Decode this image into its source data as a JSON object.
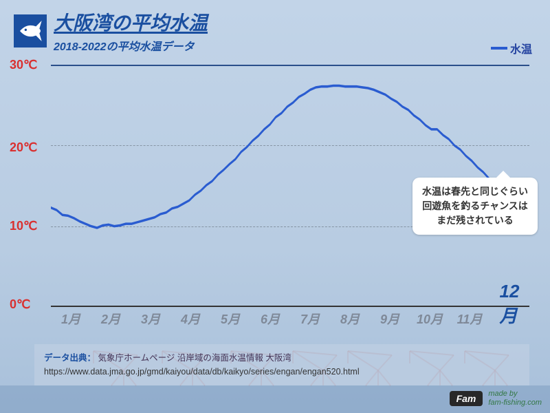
{
  "header": {
    "title": "大阪湾の平均水温",
    "subtitle": "2018-2022の平均水温データ"
  },
  "legend_label": "水温",
  "chart": {
    "type": "line",
    "line_color": "#2a5cd0",
    "line_width": 3,
    "ylim": [
      0,
      30
    ],
    "yticks": [
      0,
      10,
      20,
      30
    ],
    "ytick_labels": [
      "0℃",
      "10℃",
      "20℃",
      "30℃"
    ],
    "ytick_color": "#d93030",
    "grid_color": "rgba(0,0,0,0.28)",
    "top_rule_color": "#294f8a",
    "baseline_color": "#333",
    "months": [
      "1月",
      "2月",
      "3月",
      "4月",
      "5月",
      "6月",
      "7月",
      "8月",
      "9月",
      "10月",
      "11月",
      "12月"
    ],
    "months_highlight_index": 11,
    "xlabel_color": "#7f8998",
    "xlabel_highlight_color": "#1a4fa0",
    "series": [
      12.3,
      12.0,
      11.4,
      11.3,
      11.0,
      10.6,
      10.3,
      10.0,
      9.8,
      10.1,
      10.2,
      10.0,
      10.1,
      10.3,
      10.3,
      10.5,
      10.7,
      10.9,
      11.1,
      11.5,
      11.7,
      12.2,
      12.4,
      12.8,
      13.2,
      13.9,
      14.4,
      15.1,
      15.6,
      16.4,
      17.0,
      17.7,
      18.3,
      19.2,
      19.8,
      20.6,
      21.2,
      22.0,
      22.6,
      23.5,
      24.0,
      24.8,
      25.3,
      26.0,
      26.4,
      26.9,
      27.2,
      27.3,
      27.3,
      27.4,
      27.4,
      27.3,
      27.3,
      27.3,
      27.2,
      27.1,
      26.9,
      26.6,
      26.3,
      25.8,
      25.4,
      24.8,
      24.4,
      23.7,
      23.2,
      22.5,
      22.0,
      22.0,
      21.3,
      20.8,
      20.0,
      19.5,
      18.7,
      18.1,
      17.3,
      16.7,
      15.9,
      15.3,
      14.6,
      14.3,
      13.9,
      13.6,
      13.2,
      13.0
    ]
  },
  "callout": {
    "line1": "水温は春先と同じぐらい",
    "line2": "回遊魚を釣るチャンスは",
    "line3": "まだ残されている"
  },
  "source": {
    "label": "データ出典：",
    "text": "気象庁ホームページ 沿岸域の海面水温情報 大阪湾",
    "url": "https://www.data.jma.go.jp/gmd/kaiyou/data/db/kaikyo/series/engan/engan520.html"
  },
  "brand": {
    "logo_text": "Fam",
    "line1": "made by",
    "line2": "fam-fishing.com"
  },
  "colors": {
    "title_color": "#1a4fa0",
    "background_gradient_top": "#c2d4e8",
    "background_gradient_bottom": "#a8c0da",
    "callout_bg": "#ffffff"
  },
  "cranes": {
    "top_y": 110,
    "body_y": 138,
    "positions": [
      180,
      280,
      380,
      470,
      550,
      640,
      720
    ],
    "stroke": "rgba(170,90,90,0.45)",
    "sea_color": "rgba(130,160,195,0.6)"
  }
}
